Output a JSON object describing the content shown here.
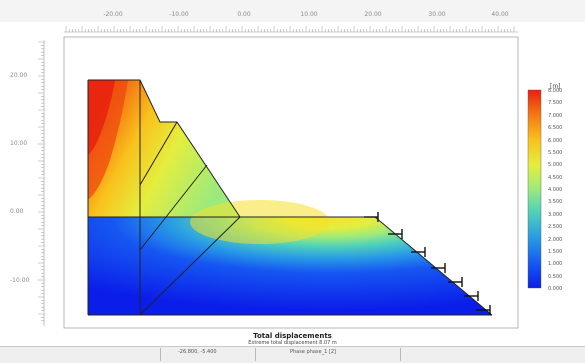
{
  "app": {
    "window_area": "plaxis-output-view"
  },
  "ruler_top": {
    "labels": [
      "-20.00",
      "-10.00",
      "0.00",
      "10.00",
      "20.00",
      "30.00",
      "40.00"
    ]
  },
  "ruler_left": {
    "labels": [
      "20.00",
      "10.00",
      "0.00",
      "-10.00"
    ]
  },
  "legend": {
    "unit": "[m]",
    "labels": [
      "8.000",
      "7.500",
      "7.000",
      "6.500",
      "6.000",
      "5.500",
      "5.000",
      "4.500",
      "4.000",
      "3.500",
      "3.000",
      "2.500",
      "2.000",
      "1.500",
      "1.000",
      "0.500",
      "0.000"
    ],
    "colors": [
      "#e8210e",
      "#ef4a0f",
      "#f47514",
      "#f79d18",
      "#f9c11c",
      "#f5e02a",
      "#e4ee3e",
      "#c3ef5c",
      "#9cea7c",
      "#72e09c",
      "#4dd0bc",
      "#34b8d6",
      "#2899e6",
      "#1f78ef",
      "#1656f2",
      "#1036f0",
      "#0b1ee9"
    ]
  },
  "caption": {
    "title": "Total displacements",
    "subtitle": "Extreme total displacement 8.07 m"
  },
  "status_bar": {
    "coords": "-26.800, -5.400",
    "phase": "Phase phase_1 [2]"
  },
  "colors": {
    "deep": "#0b1ee9",
    "mid": "#4dd0bc",
    "high": "#f9c11c",
    "max": "#e8210e"
  },
  "icons": [
    "anchor-icon"
  ]
}
